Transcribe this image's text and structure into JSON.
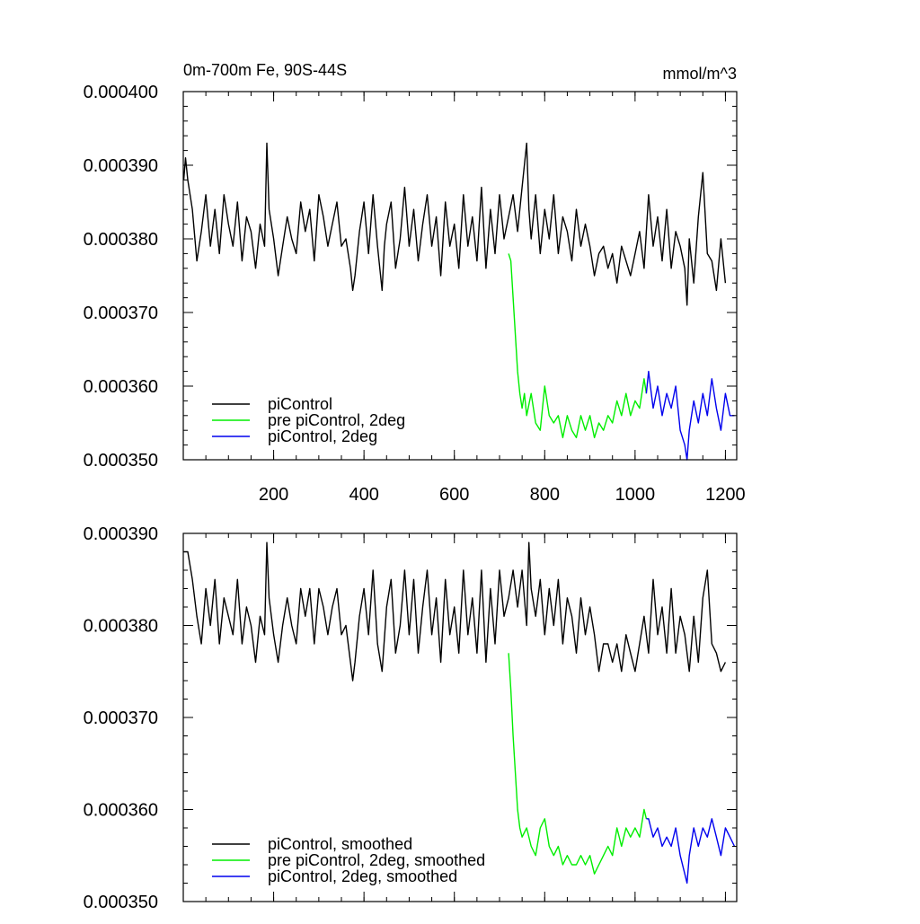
{
  "chart_data": [
    {
      "type": "line",
      "title": "0m-700m Fe, 90S-44S",
      "units": "mmol/m^3",
      "xlabel": "",
      "ylabel": "",
      "xlim": [
        0,
        1225
      ],
      "ylim": [
        0.00035,
        0.0004
      ],
      "xticks": [
        200,
        400,
        600,
        800,
        1000,
        1200
      ],
      "xtick_labels": [
        "200",
        "400",
        "600",
        "800",
        "1000",
        "1200"
      ],
      "yticks": [
        0.00035,
        0.00036,
        0.00037,
        0.00038,
        0.00039,
        0.0004
      ],
      "ytick_labels": [
        "0.000350",
        "0.000360",
        "0.000370",
        "0.000380",
        "0.000390",
        "0.000400"
      ],
      "grid": false,
      "legend_position": "bottom-left",
      "series": [
        {
          "name": "piControl",
          "color": "#000000",
          "x": [
            1,
            5,
            10,
            20,
            30,
            40,
            50,
            60,
            70,
            80,
            90,
            100,
            110,
            120,
            130,
            140,
            150,
            160,
            170,
            180,
            185,
            190,
            200,
            210,
            220,
            230,
            240,
            250,
            260,
            270,
            280,
            290,
            300,
            310,
            320,
            330,
            340,
            350,
            360,
            370,
            375,
            380,
            390,
            400,
            410,
            420,
            430,
            440,
            445,
            450,
            460,
            470,
            480,
            490,
            500,
            510,
            520,
            530,
            540,
            550,
            560,
            570,
            580,
            590,
            600,
            610,
            620,
            630,
            640,
            650,
            660,
            670,
            680,
            690,
            700,
            710,
            720,
            730,
            740,
            750,
            760,
            765,
            770,
            780,
            790,
            800,
            810,
            820,
            830,
            840,
            850,
            860,
            870,
            880,
            890,
            900,
            910,
            920,
            930,
            940,
            950,
            960,
            970,
            980,
            990,
            1000,
            1010,
            1020,
            1030,
            1040,
            1050,
            1060,
            1070,
            1080,
            1090,
            1100,
            1110,
            1115,
            1120,
            1130,
            1140,
            1150,
            1160,
            1170,
            1180,
            1190,
            1200
          ],
          "y": [
            0.000388,
            0.000391,
            0.000388,
            0.000384,
            0.000377,
            0.000381,
            0.000386,
            0.000379,
            0.000384,
            0.000378,
            0.000386,
            0.000382,
            0.000379,
            0.000385,
            0.000377,
            0.000383,
            0.000381,
            0.000376,
            0.000382,
            0.000379,
            0.000393,
            0.000384,
            0.00038,
            0.000375,
            0.000379,
            0.000383,
            0.00038,
            0.000378,
            0.000385,
            0.000381,
            0.000384,
            0.000377,
            0.000386,
            0.000383,
            0.000379,
            0.000382,
            0.000385,
            0.000379,
            0.00038,
            0.000376,
            0.000373,
            0.000375,
            0.000381,
            0.000385,
            0.000378,
            0.000386,
            0.000379,
            0.000373,
            0.000379,
            0.000382,
            0.000385,
            0.000376,
            0.00038,
            0.000387,
            0.000379,
            0.000384,
            0.000377,
            0.000382,
            0.000386,
            0.000379,
            0.000383,
            0.000375,
            0.000385,
            0.000379,
            0.000382,
            0.000376,
            0.000386,
            0.000379,
            0.000383,
            0.000377,
            0.000387,
            0.000376,
            0.000384,
            0.000378,
            0.000386,
            0.00038,
            0.000383,
            0.000386,
            0.000381,
            0.000387,
            0.000393,
            0.000384,
            0.00038,
            0.000386,
            0.000378,
            0.000384,
            0.00038,
            0.000386,
            0.000378,
            0.000383,
            0.000381,
            0.000377,
            0.000384,
            0.000379,
            0.000382,
            0.000379,
            0.000375,
            0.000378,
            0.000379,
            0.000376,
            0.000378,
            0.000374,
            0.000379,
            0.000377,
            0.000375,
            0.000378,
            0.000381,
            0.000376,
            0.000386,
            0.000379,
            0.000383,
            0.000377,
            0.000384,
            0.000376,
            0.000381,
            0.000379,
            0.000376,
            0.000371,
            0.00038,
            0.000374,
            0.000383,
            0.000389,
            0.000378,
            0.000377,
            0.000373,
            0.00038,
            0.000374
          ]
        },
        {
          "name": "pre piControl, 2deg",
          "color": "#00ee00",
          "x": [
            720,
            725,
            730,
            735,
            740,
            745,
            750,
            755,
            760,
            770,
            780,
            790,
            800,
            810,
            820,
            830,
            840,
            850,
            860,
            870,
            880,
            890,
            900,
            910,
            920,
            930,
            940,
            950,
            960,
            970,
            980,
            990,
            1000,
            1010,
            1020,
            1025
          ],
          "y": [
            0.000378,
            0.000377,
            0.000372,
            0.000367,
            0.000362,
            0.000359,
            0.000357,
            0.000359,
            0.000356,
            0.000359,
            0.000355,
            0.000354,
            0.00036,
            0.000356,
            0.000355,
            0.000356,
            0.000353,
            0.000356,
            0.000354,
            0.000353,
            0.000356,
            0.000354,
            0.000356,
            0.000353,
            0.000355,
            0.000354,
            0.000356,
            0.000355,
            0.000358,
            0.000356,
            0.000359,
            0.000356,
            0.000358,
            0.000357,
            0.000361,
            0.000359
          ]
        },
        {
          "name": "piControl, 2deg",
          "color": "#0000ee",
          "x": [
            1025,
            1030,
            1040,
            1050,
            1060,
            1070,
            1080,
            1090,
            1100,
            1110,
            1115,
            1120,
            1130,
            1140,
            1150,
            1160,
            1170,
            1180,
            1190,
            1200,
            1210,
            1220
          ],
          "y": [
            0.000359,
            0.000362,
            0.000357,
            0.00036,
            0.000356,
            0.000359,
            0.000357,
            0.00036,
            0.000354,
            0.000352,
            0.00035,
            0.000354,
            0.000358,
            0.000355,
            0.000359,
            0.000356,
            0.000361,
            0.000357,
            0.000354,
            0.000359,
            0.000356,
            0.000356
          ]
        }
      ]
    },
    {
      "type": "line",
      "title": "",
      "units": "",
      "xlabel": "",
      "ylabel": "",
      "xlim": [
        0,
        1225
      ],
      "ylim": [
        0.00035,
        0.00039
      ],
      "xticks": [
        200,
        400,
        600,
        800,
        1000,
        1200
      ],
      "xtick_labels": [],
      "yticks": [
        0.00035,
        0.00036,
        0.00037,
        0.00038,
        0.00039
      ],
      "ytick_labels": [
        "0.000350",
        "0.000360",
        "0.000370",
        "0.000380",
        "0.000390"
      ],
      "grid": false,
      "legend_position": "bottom-left",
      "series": [
        {
          "name": "piControl, smoothed",
          "color": "#000000",
          "x": [
            1,
            10,
            20,
            30,
            40,
            50,
            60,
            70,
            80,
            90,
            100,
            110,
            120,
            130,
            140,
            150,
            160,
            170,
            180,
            185,
            190,
            200,
            210,
            220,
            230,
            240,
            250,
            260,
            270,
            280,
            290,
            300,
            310,
            320,
            330,
            340,
            350,
            360,
            370,
            375,
            380,
            390,
            400,
            410,
            420,
            430,
            440,
            450,
            460,
            470,
            480,
            490,
            500,
            510,
            520,
            530,
            540,
            550,
            560,
            570,
            580,
            590,
            600,
            610,
            620,
            630,
            640,
            650,
            660,
            670,
            680,
            690,
            700,
            710,
            720,
            730,
            740,
            750,
            760,
            765,
            770,
            780,
            790,
            800,
            810,
            820,
            830,
            840,
            850,
            860,
            870,
            880,
            890,
            900,
            910,
            920,
            930,
            940,
            950,
            960,
            970,
            980,
            990,
            1000,
            1010,
            1020,
            1030,
            1040,
            1050,
            1060,
            1070,
            1080,
            1090,
            1100,
            1110,
            1120,
            1130,
            1140,
            1150,
            1160,
            1170,
            1180,
            1190,
            1200
          ],
          "y": [
            0.000388,
            0.000388,
            0.000385,
            0.000381,
            0.000378,
            0.000384,
            0.00038,
            0.000385,
            0.000378,
            0.000383,
            0.000381,
            0.000379,
            0.000385,
            0.000378,
            0.000382,
            0.00038,
            0.000376,
            0.000381,
            0.000379,
            0.000389,
            0.000383,
            0.000379,
            0.000376,
            0.00038,
            0.000383,
            0.00038,
            0.000378,
            0.000384,
            0.000381,
            0.000384,
            0.000378,
            0.000384,
            0.000382,
            0.000379,
            0.000382,
            0.000384,
            0.000379,
            0.00038,
            0.000376,
            0.000374,
            0.000376,
            0.000381,
            0.000384,
            0.000379,
            0.000386,
            0.000378,
            0.000375,
            0.000382,
            0.000385,
            0.000377,
            0.00038,
            0.000386,
            0.000379,
            0.000385,
            0.000377,
            0.000382,
            0.000386,
            0.000379,
            0.000383,
            0.000376,
            0.000385,
            0.000379,
            0.000382,
            0.000377,
            0.000386,
            0.000379,
            0.000383,
            0.000377,
            0.000386,
            0.000376,
            0.000384,
            0.000378,
            0.000386,
            0.000381,
            0.000383,
            0.000386,
            0.000382,
            0.000386,
            0.00038,
            0.000389,
            0.000384,
            0.000381,
            0.000385,
            0.000379,
            0.000384,
            0.00038,
            0.000385,
            0.000378,
            0.000383,
            0.000381,
            0.000377,
            0.000383,
            0.000379,
            0.000382,
            0.000379,
            0.000375,
            0.000378,
            0.000378,
            0.000376,
            0.000378,
            0.000375,
            0.000379,
            0.000377,
            0.000375,
            0.000378,
            0.000381,
            0.000377,
            0.000385,
            0.000379,
            0.000382,
            0.000377,
            0.000384,
            0.000377,
            0.000381,
            0.000379,
            0.000375,
            0.000381,
            0.000376,
            0.000383,
            0.000386,
            0.000378,
            0.000377,
            0.000375,
            0.000376
          ]
        },
        {
          "name": "pre piControl, 2deg, smoothed",
          "color": "#00ee00",
          "x": [
            720,
            725,
            730,
            735,
            740,
            745,
            750,
            760,
            770,
            780,
            790,
            800,
            810,
            820,
            830,
            840,
            850,
            860,
            870,
            880,
            890,
            900,
            910,
            920,
            930,
            940,
            950,
            960,
            970,
            980,
            990,
            1000,
            1010,
            1020,
            1025
          ],
          "y": [
            0.000377,
            0.000373,
            0.000368,
            0.000364,
            0.00036,
            0.000358,
            0.000357,
            0.000358,
            0.000356,
            0.000355,
            0.000358,
            0.000359,
            0.000356,
            0.000355,
            0.000356,
            0.000354,
            0.000355,
            0.000354,
            0.000354,
            0.000355,
            0.000354,
            0.000355,
            0.000353,
            0.000354,
            0.000355,
            0.000356,
            0.000355,
            0.000358,
            0.000356,
            0.000358,
            0.000357,
            0.000358,
            0.000357,
            0.00036,
            0.000359
          ]
        },
        {
          "name": "piControl, 2deg, smoothed",
          "color": "#0000ee",
          "x": [
            1025,
            1030,
            1040,
            1050,
            1060,
            1070,
            1080,
            1090,
            1100,
            1110,
            1115,
            1120,
            1130,
            1140,
            1150,
            1160,
            1170,
            1180,
            1190,
            1200,
            1210,
            1220
          ],
          "y": [
            0.000359,
            0.000359,
            0.000357,
            0.000358,
            0.000356,
            0.000357,
            0.000356,
            0.000358,
            0.000355,
            0.000353,
            0.000352,
            0.000355,
            0.000358,
            0.000356,
            0.000358,
            0.000357,
            0.000359,
            0.000357,
            0.000355,
            0.000358,
            0.000357,
            0.000356
          ]
        }
      ]
    }
  ]
}
